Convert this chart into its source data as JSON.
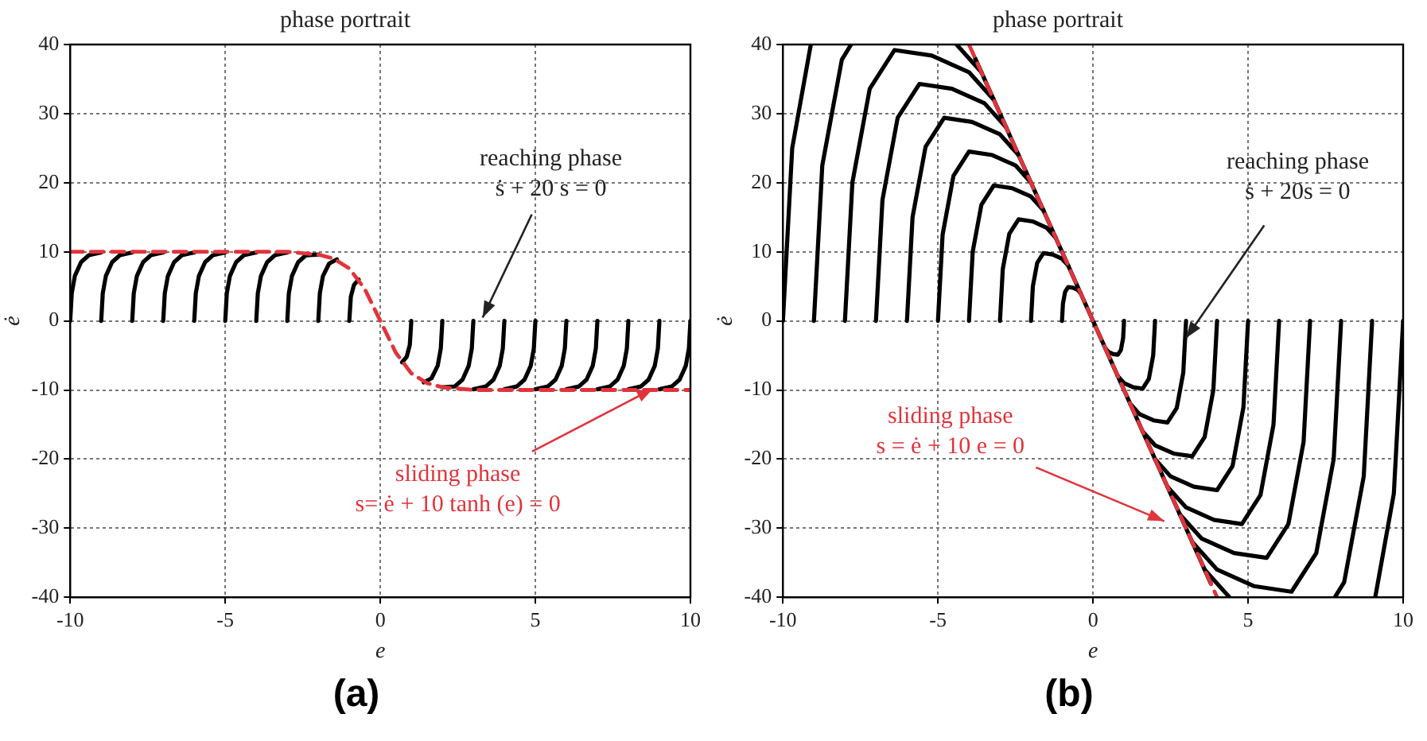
{
  "chart_data": [
    {
      "type": "line",
      "title": "phase portrait",
      "xlabel": "e",
      "ylabel": "ė",
      "xlim": [
        -10,
        10
      ],
      "ylim": [
        -40,
        40
      ],
      "xticks": [
        -10,
        -5,
        0,
        5,
        10
      ],
      "yticks": [
        -40,
        -30,
        -20,
        -10,
        0,
        10,
        20,
        30,
        40
      ],
      "grid": true,
      "legend": false,
      "marker": "none",
      "annotations": [
        "reaching phase\nṡ + 20 s = 0",
        {
          "text": "sliding phase\ns= ė + 10 tanh (e) = 0",
          "x": 8.8,
          "y": -9.8
        },
        "(a)"
      ],
      "series": [
        {
          "color": "#e0343c",
          "line_style": "dashed",
          "x": [
            -10,
            -3,
            -2,
            -1.5,
            -1,
            -0.5,
            0,
            0.5,
            1,
            1.5,
            2,
            3,
            10
          ],
          "values": [
            10,
            10,
            9.6,
            9,
            7.6,
            4.6,
            0,
            -4.6,
            -7.6,
            -9,
            -9.6,
            -10,
            -10
          ]
        },
        {
          "color": "#000000",
          "x": [
            -1,
            -0.95,
            -0.85,
            -0.7
          ],
          "values": [
            0,
            3.5,
            5.2,
            6
          ]
        },
        {
          "color": "#000000",
          "x": [
            -2,
            -1.95,
            -1.85,
            -1.65,
            -1.4
          ],
          "values": [
            0,
            4,
            6.5,
            8.3,
            8.9
          ]
        },
        {
          "color": "#000000",
          "x": [
            -3,
            -2.95,
            -2.85,
            -2.65,
            -2.4,
            -2
          ],
          "values": [
            0,
            4,
            6.5,
            8.5,
            9.5,
            9.6
          ]
        },
        {
          "color": "#000000",
          "x": [
            -4,
            -3.95,
            -3.85,
            -3.65,
            -3.4,
            -3
          ],
          "values": [
            0,
            4,
            6.5,
            8.5,
            9.5,
            9.9
          ]
        },
        {
          "color": "#000000",
          "x": [
            -5,
            -4.95,
            -4.85,
            -4.65,
            -4.4,
            -4
          ],
          "values": [
            0,
            4,
            6.5,
            8.5,
            9.5,
            9.9
          ]
        },
        {
          "color": "#000000",
          "x": [
            -6,
            -5.95,
            -5.85,
            -5.65,
            -5.4,
            -5
          ],
          "values": [
            0,
            4,
            6.5,
            8.5,
            9.5,
            9.9
          ]
        },
        {
          "color": "#000000",
          "x": [
            -7,
            -6.95,
            -6.85,
            -6.65,
            -6.4,
            -6
          ],
          "values": [
            0,
            4,
            6.5,
            8.5,
            9.5,
            9.9
          ]
        },
        {
          "color": "#000000",
          "x": [
            -8,
            -7.95,
            -7.85,
            -7.65,
            -7.4,
            -7
          ],
          "values": [
            0,
            4,
            6.5,
            8.5,
            9.5,
            9.9
          ]
        },
        {
          "color": "#000000",
          "x": [
            -9,
            -8.95,
            -8.85,
            -8.65,
            -8.4,
            -8
          ],
          "values": [
            0,
            4,
            6.5,
            8.5,
            9.5,
            9.9
          ]
        },
        {
          "color": "#000000",
          "x": [
            -10,
            -9.95,
            -9.85,
            -9.65,
            -9.4,
            -9
          ],
          "values": [
            0,
            4,
            6.5,
            8.5,
            9.5,
            9.9
          ]
        },
        {
          "color": "#000000",
          "x": [
            1,
            0.95,
            0.85,
            0.7
          ],
          "values": [
            0,
            -3.5,
            -5.2,
            -6
          ]
        },
        {
          "color": "#000000",
          "x": [
            2,
            1.95,
            1.85,
            1.65,
            1.4
          ],
          "values": [
            0,
            -4,
            -6.5,
            -8.3,
            -8.9
          ]
        },
        {
          "color": "#000000",
          "x": [
            3,
            2.95,
            2.85,
            2.65,
            2.4,
            2
          ],
          "values": [
            0,
            -4,
            -6.5,
            -8.5,
            -9.5,
            -9.6
          ]
        },
        {
          "color": "#000000",
          "x": [
            4,
            3.95,
            3.85,
            3.65,
            3.4,
            3
          ],
          "values": [
            0,
            -4,
            -6.5,
            -8.5,
            -9.5,
            -9.9
          ]
        },
        {
          "color": "#000000",
          "x": [
            5,
            4.95,
            4.85,
            4.65,
            4.4,
            4
          ],
          "values": [
            0,
            -4,
            -6.5,
            -8.5,
            -9.5,
            -9.9
          ]
        },
        {
          "color": "#000000",
          "x": [
            6,
            5.95,
            5.85,
            5.65,
            5.4,
            5
          ],
          "values": [
            0,
            -4,
            -6.5,
            -8.5,
            -9.5,
            -9.9
          ]
        },
        {
          "color": "#000000",
          "x": [
            7,
            6.95,
            6.85,
            6.65,
            6.4,
            6
          ],
          "values": [
            0,
            -4,
            -6.5,
            -8.5,
            -9.5,
            -9.9
          ]
        },
        {
          "color": "#000000",
          "x": [
            8,
            7.95,
            7.85,
            7.65,
            7.4,
            7
          ],
          "values": [
            0,
            -4,
            -6.5,
            -8.5,
            -9.5,
            -9.9
          ]
        },
        {
          "color": "#000000",
          "x": [
            9,
            8.95,
            8.85,
            8.65,
            8.4,
            8
          ],
          "values": [
            0,
            -4,
            -6.5,
            -8.5,
            -9.5,
            -9.9
          ]
        },
        {
          "color": "#000000",
          "x": [
            10,
            9.95,
            9.85,
            9.65,
            9.4,
            9
          ],
          "values": [
            0,
            -4,
            -6.5,
            -8.5,
            -9.5,
            -9.9
          ]
        }
      ]
    },
    {
      "type": "line",
      "title": "phase portrait",
      "xlabel": "e",
      "ylabel": "ė",
      "xlim": [
        -10,
        10
      ],
      "ylim": [
        -40,
        40
      ],
      "xticks": [
        -10,
        -5,
        0,
        5,
        10
      ],
      "yticks": [
        -40,
        -30,
        -20,
        -10,
        0,
        10,
        20,
        30,
        40
      ],
      "grid": true,
      "legend": false,
      "marker": "none",
      "annotations": [
        {
          "text": "reaching phase\nṡ + 20s = 0",
          "x": 3,
          "y": -2.5
        },
        "sliding phase\ns = ė + 10 e = 0",
        "(b)"
      ],
      "series": [
        {
          "color": "#e0343c",
          "line_style": "dashed",
          "x": [
            -4,
            4
          ],
          "values": [
            40,
            -40
          ]
        },
        {
          "color": "#000000",
          "x": [
            -3.8,
            3.8
          ],
          "values": [
            38,
            -38
          ]
        },
        {
          "color": "#000000",
          "x": [
            -1,
            -0.97,
            -0.9,
            -0.8,
            -0.65,
            -0.5,
            -0.4
          ],
          "values": [
            0,
            2.5,
            4.2,
            4.9,
            4.8,
            4.5,
            4
          ]
        },
        {
          "color": "#000000",
          "x": [
            -2,
            -1.94,
            -1.8,
            -1.6,
            -1.3,
            -1,
            -0.8
          ],
          "values": [
            0,
            5,
            8.4,
            9.8,
            9.6,
            9,
            8
          ]
        },
        {
          "color": "#000000",
          "x": [
            -3,
            -2.91,
            -2.7,
            -2.4,
            -1.95,
            -1.5,
            -1.2
          ],
          "values": [
            0,
            7.5,
            12.6,
            14.7,
            14.4,
            13.5,
            12
          ]
        },
        {
          "color": "#000000",
          "x": [
            -4,
            -3.88,
            -3.6,
            -3.2,
            -2.6,
            -2,
            -1.6
          ],
          "values": [
            0,
            10,
            16.8,
            19.6,
            19.2,
            18,
            16
          ]
        },
        {
          "color": "#000000",
          "x": [
            -5,
            -4.85,
            -4.5,
            -4,
            -3.25,
            -2.5,
            -2
          ],
          "values": [
            0,
            12.5,
            21,
            24.5,
            24,
            22.5,
            20
          ]
        },
        {
          "color": "#000000",
          "x": [
            -6,
            -5.82,
            -5.4,
            -4.8,
            -3.9,
            -3,
            -2.4
          ],
          "values": [
            0,
            15,
            25.2,
            29.4,
            28.8,
            27,
            24
          ]
        },
        {
          "color": "#000000",
          "x": [
            -7,
            -6.79,
            -6.3,
            -5.6,
            -4.55,
            -3.5,
            -2.8
          ],
          "values": [
            0,
            17.5,
            29.4,
            34.3,
            33.6,
            31.5,
            28
          ]
        },
        {
          "color": "#000000",
          "x": [
            -8,
            -7.76,
            -7.2,
            -6.4,
            -5.2,
            -4,
            -3.2
          ],
          "values": [
            0,
            20,
            33.6,
            39.2,
            38.4,
            36,
            32
          ]
        },
        {
          "color": "#000000",
          "x": [
            -9,
            -8.73,
            -8.1,
            -7.8,
            -6,
            -4.4,
            -3.6
          ],
          "values": [
            0,
            22.5,
            37.8,
            40,
            null,
            40,
            36
          ]
        },
        {
          "color": "#000000",
          "x": [
            -10,
            -9.7,
            -9.1
          ],
          "values": [
            0,
            25,
            40
          ]
        },
        {
          "color": "#000000",
          "x": [
            1,
            0.97,
            0.9,
            0.8,
            0.65,
            0.5,
            0.4
          ],
          "values": [
            0,
            -2.5,
            -4.2,
            -4.9,
            -4.8,
            -4.5,
            -4
          ]
        },
        {
          "color": "#000000",
          "x": [
            2,
            1.94,
            1.8,
            1.6,
            1.3,
            1,
            0.8
          ],
          "values": [
            0,
            -5,
            -8.4,
            -9.8,
            -9.6,
            -9,
            -8
          ]
        },
        {
          "color": "#000000",
          "x": [
            3,
            2.91,
            2.7,
            2.4,
            1.95,
            1.5,
            1.2
          ],
          "values": [
            0,
            -7.5,
            -12.6,
            -14.7,
            -14.4,
            -13.5,
            -12
          ]
        },
        {
          "color": "#000000",
          "x": [
            4,
            3.88,
            3.6,
            3.2,
            2.6,
            2,
            1.6
          ],
          "values": [
            0,
            -10,
            -16.8,
            -19.6,
            -19.2,
            -18,
            -16
          ]
        },
        {
          "color": "#000000",
          "x": [
            5,
            4.85,
            4.5,
            4,
            3.25,
            2.5,
            2
          ],
          "values": [
            0,
            -12.5,
            -21,
            -24.5,
            -24,
            -22.5,
            -20
          ]
        },
        {
          "color": "#000000",
          "x": [
            6,
            5.82,
            5.4,
            4.8,
            3.9,
            3,
            2.4
          ],
          "values": [
            0,
            -15,
            -25.2,
            -29.4,
            -28.8,
            -27,
            -24
          ]
        },
        {
          "color": "#000000",
          "x": [
            7,
            6.79,
            6.3,
            5.6,
            4.55,
            3.5,
            2.8
          ],
          "values": [
            0,
            -17.5,
            -29.4,
            -34.3,
            -33.6,
            -31.5,
            -28
          ]
        },
        {
          "color": "#000000",
          "x": [
            8,
            7.76,
            7.2,
            6.4,
            5.2,
            4,
            3.2
          ],
          "values": [
            0,
            -20,
            -33.6,
            -39.2,
            -38.4,
            -36,
            -32
          ]
        },
        {
          "color": "#000000",
          "x": [
            9,
            8.73,
            8.1,
            7.8,
            6,
            4.4,
            3.6
          ],
          "values": [
            0,
            -22.5,
            -37.8,
            -40,
            null,
            -40,
            -36
          ]
        },
        {
          "color": "#000000",
          "x": [
            10,
            9.7,
            9.1
          ],
          "values": [
            0,
            -25,
            -40
          ]
        }
      ]
    }
  ]
}
